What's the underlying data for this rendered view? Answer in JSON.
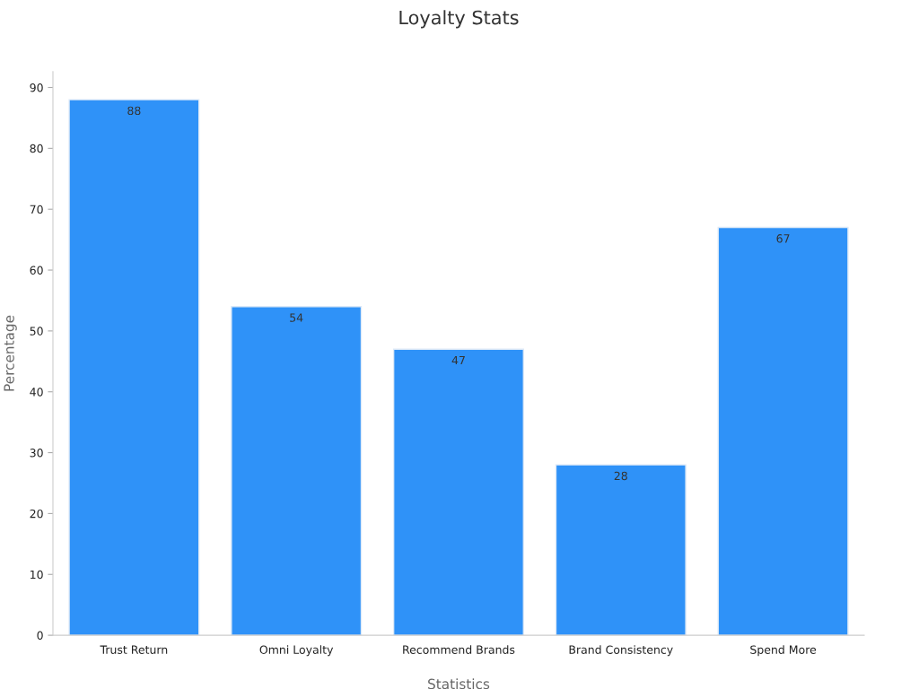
{
  "chart_data": {
    "type": "bar",
    "title": "Loyalty Stats",
    "xlabel": "Statistics",
    "ylabel": "Percentage",
    "categories": [
      "Trust Return",
      "Omni Loyalty",
      "Recommend Brands",
      "Brand Consistency",
      "Spend More"
    ],
    "values": [
      88,
      54,
      47,
      28,
      67
    ],
    "color": "#2f92f8",
    "ylim": [
      0,
      92.6
    ],
    "yticks": [
      0,
      10,
      20,
      30,
      40,
      50,
      60,
      70,
      80,
      90
    ],
    "grid": false,
    "data_labels": true
  }
}
